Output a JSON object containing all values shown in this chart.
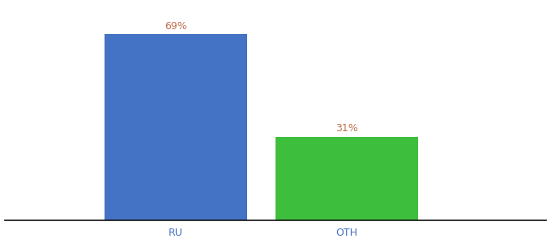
{
  "categories": [
    "RU",
    "OTH"
  ],
  "values": [
    69,
    31
  ],
  "bar_colors": [
    "#4472c4",
    "#3dbf3d"
  ],
  "label_color": "#c07050",
  "tick_label_color": "#4472c4",
  "background_color": "#ffffff",
  "ylim": [
    0,
    80
  ],
  "bar_width": 0.25,
  "label_fontsize": 9,
  "tick_fontsize": 9,
  "annotations": [
    "69%",
    "31%"
  ]
}
